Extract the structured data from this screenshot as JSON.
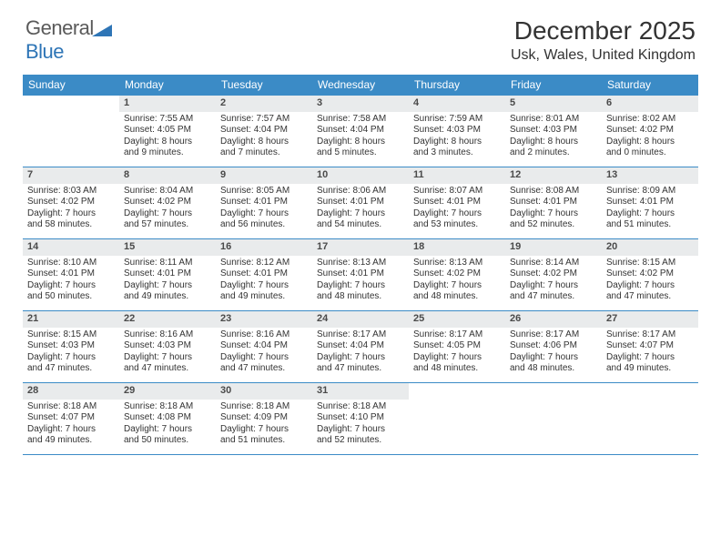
{
  "brand": {
    "name_a": "General",
    "name_b": "Blue"
  },
  "title": "December 2025",
  "location": "Usk, Wales, United Kingdom",
  "header_bg": "#3b8bc6",
  "daynum_bg": "#e9ebec",
  "weekdays": [
    "Sunday",
    "Monday",
    "Tuesday",
    "Wednesday",
    "Thursday",
    "Friday",
    "Saturday"
  ],
  "weeks": [
    [
      {
        "n": "",
        "empty": true
      },
      {
        "n": "1",
        "sr": "Sunrise: 7:55 AM",
        "ss": "Sunset: 4:05 PM",
        "dl1": "Daylight: 8 hours",
        "dl2": "and 9 minutes."
      },
      {
        "n": "2",
        "sr": "Sunrise: 7:57 AM",
        "ss": "Sunset: 4:04 PM",
        "dl1": "Daylight: 8 hours",
        "dl2": "and 7 minutes."
      },
      {
        "n": "3",
        "sr": "Sunrise: 7:58 AM",
        "ss": "Sunset: 4:04 PM",
        "dl1": "Daylight: 8 hours",
        "dl2": "and 5 minutes."
      },
      {
        "n": "4",
        "sr": "Sunrise: 7:59 AM",
        "ss": "Sunset: 4:03 PM",
        "dl1": "Daylight: 8 hours",
        "dl2": "and 3 minutes."
      },
      {
        "n": "5",
        "sr": "Sunrise: 8:01 AM",
        "ss": "Sunset: 4:03 PM",
        "dl1": "Daylight: 8 hours",
        "dl2": "and 2 minutes."
      },
      {
        "n": "6",
        "sr": "Sunrise: 8:02 AM",
        "ss": "Sunset: 4:02 PM",
        "dl1": "Daylight: 8 hours",
        "dl2": "and 0 minutes."
      }
    ],
    [
      {
        "n": "7",
        "sr": "Sunrise: 8:03 AM",
        "ss": "Sunset: 4:02 PM",
        "dl1": "Daylight: 7 hours",
        "dl2": "and 58 minutes."
      },
      {
        "n": "8",
        "sr": "Sunrise: 8:04 AM",
        "ss": "Sunset: 4:02 PM",
        "dl1": "Daylight: 7 hours",
        "dl2": "and 57 minutes."
      },
      {
        "n": "9",
        "sr": "Sunrise: 8:05 AM",
        "ss": "Sunset: 4:01 PM",
        "dl1": "Daylight: 7 hours",
        "dl2": "and 56 minutes."
      },
      {
        "n": "10",
        "sr": "Sunrise: 8:06 AM",
        "ss": "Sunset: 4:01 PM",
        "dl1": "Daylight: 7 hours",
        "dl2": "and 54 minutes."
      },
      {
        "n": "11",
        "sr": "Sunrise: 8:07 AM",
        "ss": "Sunset: 4:01 PM",
        "dl1": "Daylight: 7 hours",
        "dl2": "and 53 minutes."
      },
      {
        "n": "12",
        "sr": "Sunrise: 8:08 AM",
        "ss": "Sunset: 4:01 PM",
        "dl1": "Daylight: 7 hours",
        "dl2": "and 52 minutes."
      },
      {
        "n": "13",
        "sr": "Sunrise: 8:09 AM",
        "ss": "Sunset: 4:01 PM",
        "dl1": "Daylight: 7 hours",
        "dl2": "and 51 minutes."
      }
    ],
    [
      {
        "n": "14",
        "sr": "Sunrise: 8:10 AM",
        "ss": "Sunset: 4:01 PM",
        "dl1": "Daylight: 7 hours",
        "dl2": "and 50 minutes."
      },
      {
        "n": "15",
        "sr": "Sunrise: 8:11 AM",
        "ss": "Sunset: 4:01 PM",
        "dl1": "Daylight: 7 hours",
        "dl2": "and 49 minutes."
      },
      {
        "n": "16",
        "sr": "Sunrise: 8:12 AM",
        "ss": "Sunset: 4:01 PM",
        "dl1": "Daylight: 7 hours",
        "dl2": "and 49 minutes."
      },
      {
        "n": "17",
        "sr": "Sunrise: 8:13 AM",
        "ss": "Sunset: 4:01 PM",
        "dl1": "Daylight: 7 hours",
        "dl2": "and 48 minutes."
      },
      {
        "n": "18",
        "sr": "Sunrise: 8:13 AM",
        "ss": "Sunset: 4:02 PM",
        "dl1": "Daylight: 7 hours",
        "dl2": "and 48 minutes."
      },
      {
        "n": "19",
        "sr": "Sunrise: 8:14 AM",
        "ss": "Sunset: 4:02 PM",
        "dl1": "Daylight: 7 hours",
        "dl2": "and 47 minutes."
      },
      {
        "n": "20",
        "sr": "Sunrise: 8:15 AM",
        "ss": "Sunset: 4:02 PM",
        "dl1": "Daylight: 7 hours",
        "dl2": "and 47 minutes."
      }
    ],
    [
      {
        "n": "21",
        "sr": "Sunrise: 8:15 AM",
        "ss": "Sunset: 4:03 PM",
        "dl1": "Daylight: 7 hours",
        "dl2": "and 47 minutes."
      },
      {
        "n": "22",
        "sr": "Sunrise: 8:16 AM",
        "ss": "Sunset: 4:03 PM",
        "dl1": "Daylight: 7 hours",
        "dl2": "and 47 minutes."
      },
      {
        "n": "23",
        "sr": "Sunrise: 8:16 AM",
        "ss": "Sunset: 4:04 PM",
        "dl1": "Daylight: 7 hours",
        "dl2": "and 47 minutes."
      },
      {
        "n": "24",
        "sr": "Sunrise: 8:17 AM",
        "ss": "Sunset: 4:04 PM",
        "dl1": "Daylight: 7 hours",
        "dl2": "and 47 minutes."
      },
      {
        "n": "25",
        "sr": "Sunrise: 8:17 AM",
        "ss": "Sunset: 4:05 PM",
        "dl1": "Daylight: 7 hours",
        "dl2": "and 48 minutes."
      },
      {
        "n": "26",
        "sr": "Sunrise: 8:17 AM",
        "ss": "Sunset: 4:06 PM",
        "dl1": "Daylight: 7 hours",
        "dl2": "and 48 minutes."
      },
      {
        "n": "27",
        "sr": "Sunrise: 8:17 AM",
        "ss": "Sunset: 4:07 PM",
        "dl1": "Daylight: 7 hours",
        "dl2": "and 49 minutes."
      }
    ],
    [
      {
        "n": "28",
        "sr": "Sunrise: 8:18 AM",
        "ss": "Sunset: 4:07 PM",
        "dl1": "Daylight: 7 hours",
        "dl2": "and 49 minutes."
      },
      {
        "n": "29",
        "sr": "Sunrise: 8:18 AM",
        "ss": "Sunset: 4:08 PM",
        "dl1": "Daylight: 7 hours",
        "dl2": "and 50 minutes."
      },
      {
        "n": "30",
        "sr": "Sunrise: 8:18 AM",
        "ss": "Sunset: 4:09 PM",
        "dl1": "Daylight: 7 hours",
        "dl2": "and 51 minutes."
      },
      {
        "n": "31",
        "sr": "Sunrise: 8:18 AM",
        "ss": "Sunset: 4:10 PM",
        "dl1": "Daylight: 7 hours",
        "dl2": "and 52 minutes."
      },
      {
        "n": "",
        "empty": true
      },
      {
        "n": "",
        "empty": true
      },
      {
        "n": "",
        "empty": true
      }
    ]
  ]
}
